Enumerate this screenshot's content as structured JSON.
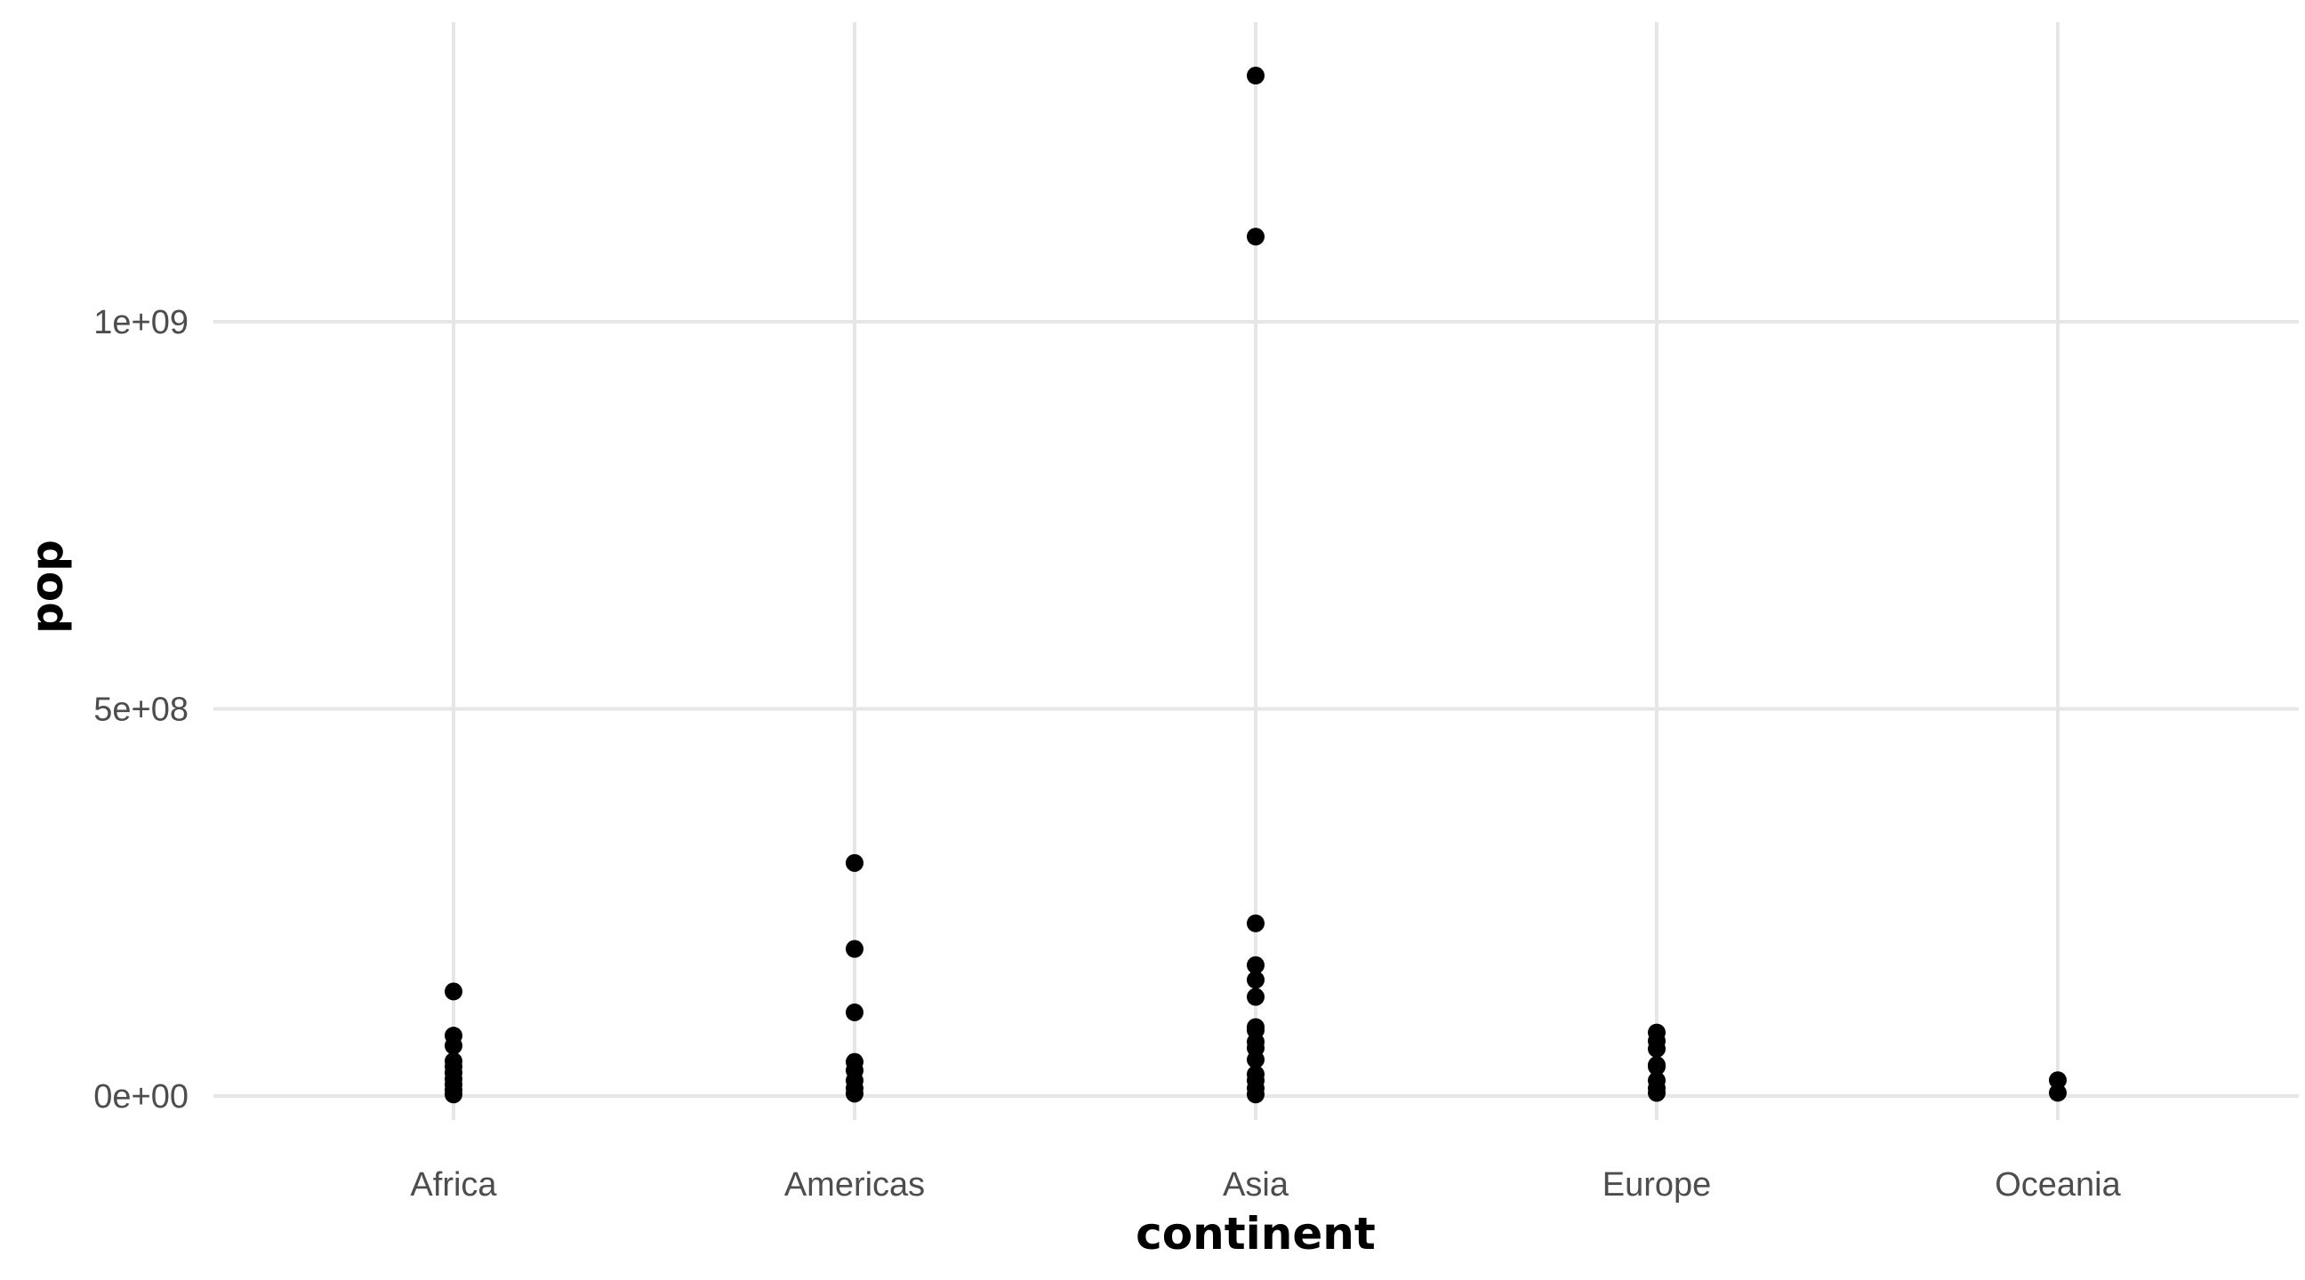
{
  "chart_data": {
    "type": "scatter",
    "title": "",
    "xlabel": "continent",
    "ylabel": "pop",
    "categories": [
      "Africa",
      "Americas",
      "Asia",
      "Europe",
      "Oceania"
    ],
    "y_ticks": [
      0,
      500000000,
      1000000000
    ],
    "y_tick_labels": [
      "0e+00",
      "5e+08",
      "1e+09"
    ],
    "ylim": [
      -30000000,
      1380000000
    ],
    "grid": true,
    "legend": "none",
    "point_color": "#000000",
    "grid_color": "#e6e6e6",
    "series": [
      {
        "points": [
          [
            "Africa",
            135000000
          ],
          [
            "Africa",
            78000000
          ],
          [
            "Africa",
            65000000
          ],
          [
            "Africa",
            45000000
          ],
          [
            "Africa",
            38000000
          ],
          [
            "Africa",
            30000000
          ],
          [
            "Africa",
            22000000
          ],
          [
            "Africa",
            15000000
          ],
          [
            "Africa",
            8000000
          ],
          [
            "Africa",
            2000000
          ],
          [
            "Americas",
            301000000
          ],
          [
            "Americas",
            190000000
          ],
          [
            "Americas",
            108000000
          ],
          [
            "Americas",
            44000000
          ],
          [
            "Americas",
            33000000
          ],
          [
            "Americas",
            20000000
          ],
          [
            "Americas",
            10000000
          ],
          [
            "Americas",
            3000000
          ],
          [
            "Asia",
            1318000000
          ],
          [
            "Asia",
            1110000000
          ],
          [
            "Asia",
            223000000
          ],
          [
            "Asia",
            169000000
          ],
          [
            "Asia",
            150000000
          ],
          [
            "Asia",
            128000000
          ],
          [
            "Asia",
            89000000
          ],
          [
            "Asia",
            85000000
          ],
          [
            "Asia",
            70000000
          ],
          [
            "Asia",
            62000000
          ],
          [
            "Asia",
            47000000
          ],
          [
            "Asia",
            28000000
          ],
          [
            "Asia",
            20000000
          ],
          [
            "Asia",
            10000000
          ],
          [
            "Asia",
            2000000
          ],
          [
            "Europe",
            82000000
          ],
          [
            "Europe",
            71000000
          ],
          [
            "Europe",
            61000000
          ],
          [
            "Europe",
            40000000
          ],
          [
            "Europe",
            38000000
          ],
          [
            "Europe",
            20000000
          ],
          [
            "Europe",
            10000000
          ],
          [
            "Europe",
            4000000
          ],
          [
            "Oceania",
            20400000
          ],
          [
            "Oceania",
            4100000
          ]
        ]
      }
    ]
  }
}
